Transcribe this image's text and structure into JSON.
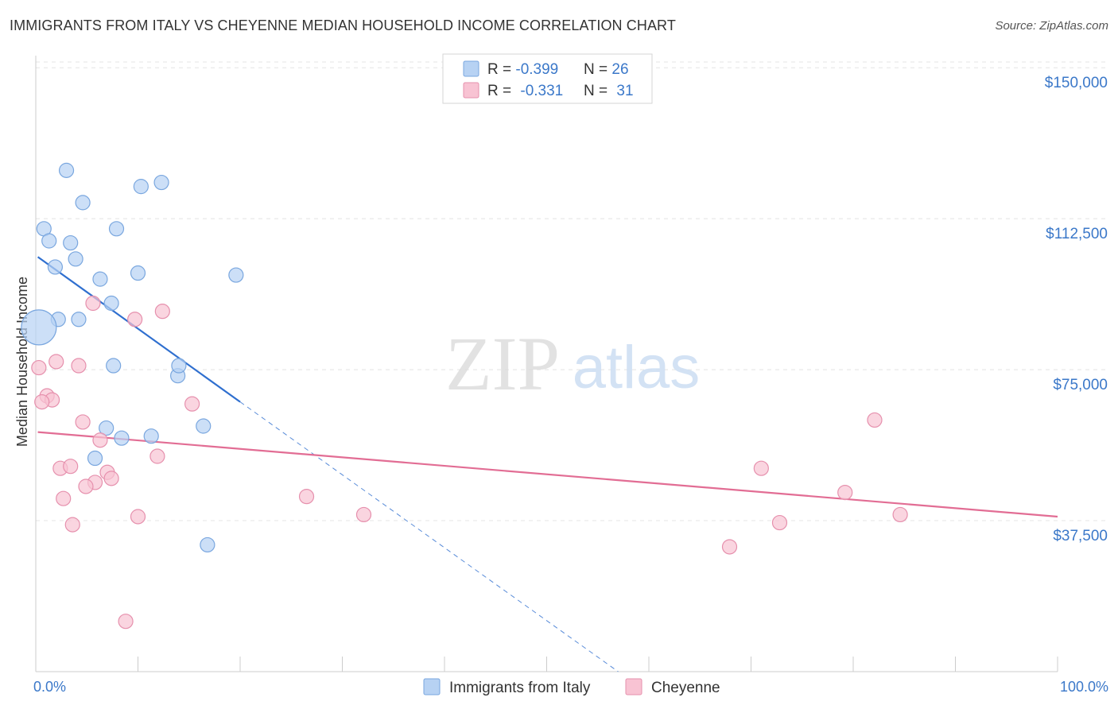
{
  "title": "IMMIGRANTS FROM ITALY VS CHEYENNE MEDIAN HOUSEHOLD INCOME CORRELATION CHART",
  "source": "Source: ZipAtlas.com",
  "watermark": {
    "zip": "ZIP",
    "atlas": "atlas"
  },
  "colors": {
    "blue_fill": "#b7d2f3",
    "blue_stroke": "#7aa7df",
    "blue_line": "#2f6fcf",
    "pink_fill": "#f8c3d3",
    "pink_stroke": "#e690ad",
    "pink_line": "#e26d94",
    "axis_text": "#3b78c9",
    "grid": "#e4e4e4"
  },
  "legend": {
    "rows": [
      {
        "r_label": "R = ",
        "r_value": "-0.399",
        "n_label": "N = ",
        "n_value": "26"
      },
      {
        "r_label": "R = ",
        "r_value": "-0.331",
        "n_label": "N = ",
        "n_value": "31"
      }
    ]
  },
  "chart_data": {
    "type": "scatter",
    "title": "IMMIGRANTS FROM ITALY VS CHEYENNE MEDIAN HOUSEHOLD INCOME CORRELATION CHART",
    "xlabel": "",
    "ylabel": "Median Household Income",
    "xlim": [
      0,
      100
    ],
    "ylim": [
      0,
      153000
    ],
    "x_tick_labels": [
      "0.0%",
      "100.0%"
    ],
    "y_ticks": [
      37500,
      75000,
      112500,
      150000
    ],
    "y_tick_labels": [
      "$37,500",
      "$75,000",
      "$112,500",
      "$150,000"
    ],
    "grid": true,
    "series": [
      {
        "name": "Immigrants from Italy",
        "color": "blue",
        "points": [
          {
            "x": 3.0,
            "y": 124500
          },
          {
            "x": 4.6,
            "y": 116500
          },
          {
            "x": 10.3,
            "y": 120500
          },
          {
            "x": 12.3,
            "y": 121500
          },
          {
            "x": 0.8,
            "y": 110000
          },
          {
            "x": 1.3,
            "y": 107000
          },
          {
            "x": 3.4,
            "y": 106500
          },
          {
            "x": 7.9,
            "y": 110000
          },
          {
            "x": 1.9,
            "y": 100500
          },
          {
            "x": 3.9,
            "y": 102500
          },
          {
            "x": 6.3,
            "y": 97500
          },
          {
            "x": 10.0,
            "y": 99000
          },
          {
            "x": 19.6,
            "y": 98500
          },
          {
            "x": 7.4,
            "y": 91500
          },
          {
            "x": 2.2,
            "y": 87500
          },
          {
            "x": 4.2,
            "y": 87500
          },
          {
            "x": 0.3,
            "y": 85500
          },
          {
            "x": 7.6,
            "y": 76000
          },
          {
            "x": 13.9,
            "y": 73500
          },
          {
            "x": 14.0,
            "y": 76000
          },
          {
            "x": 6.9,
            "y": 60500
          },
          {
            "x": 8.4,
            "y": 58000
          },
          {
            "x": 11.3,
            "y": 58500
          },
          {
            "x": 16.4,
            "y": 61000
          },
          {
            "x": 5.8,
            "y": 53000
          },
          {
            "x": 16.8,
            "y": 31500
          }
        ],
        "trend": {
          "x": [
            0.2,
            20.0
          ],
          "y": [
            103000,
            67000
          ]
        },
        "trend_extension": {
          "x": [
            20.0,
            57.0
          ],
          "y": [
            67000,
            0
          ]
        }
      },
      {
        "name": "Cheyenne",
        "color": "pink",
        "points": [
          {
            "x": 5.6,
            "y": 91500
          },
          {
            "x": 9.7,
            "y": 87500
          },
          {
            "x": 12.4,
            "y": 89500
          },
          {
            "x": 2.0,
            "y": 77000
          },
          {
            "x": 4.2,
            "y": 76000
          },
          {
            "x": 0.3,
            "y": 75500
          },
          {
            "x": 1.1,
            "y": 68500
          },
          {
            "x": 1.6,
            "y": 67500
          },
          {
            "x": 0.6,
            "y": 67000
          },
          {
            "x": 15.3,
            "y": 66500
          },
          {
            "x": 4.6,
            "y": 62000
          },
          {
            "x": 6.3,
            "y": 57500
          },
          {
            "x": 11.9,
            "y": 53500
          },
          {
            "x": 2.4,
            "y": 50500
          },
          {
            "x": 3.4,
            "y": 51000
          },
          {
            "x": 7.0,
            "y": 49500
          },
          {
            "x": 7.4,
            "y": 48000
          },
          {
            "x": 5.8,
            "y": 47000
          },
          {
            "x": 4.9,
            "y": 46000
          },
          {
            "x": 2.7,
            "y": 43000
          },
          {
            "x": 26.5,
            "y": 43500
          },
          {
            "x": 10.0,
            "y": 38500
          },
          {
            "x": 32.1,
            "y": 39000
          },
          {
            "x": 3.6,
            "y": 36500
          },
          {
            "x": 8.8,
            "y": 12500
          },
          {
            "x": 82.1,
            "y": 62500
          },
          {
            "x": 71.0,
            "y": 50500
          },
          {
            "x": 79.2,
            "y": 44500
          },
          {
            "x": 72.8,
            "y": 37000
          },
          {
            "x": 84.6,
            "y": 39000
          },
          {
            "x": 67.9,
            "y": 31000
          }
        ],
        "trend": {
          "x": [
            0.2,
            100.0
          ],
          "y": [
            59500,
            38500
          ]
        }
      }
    ]
  }
}
